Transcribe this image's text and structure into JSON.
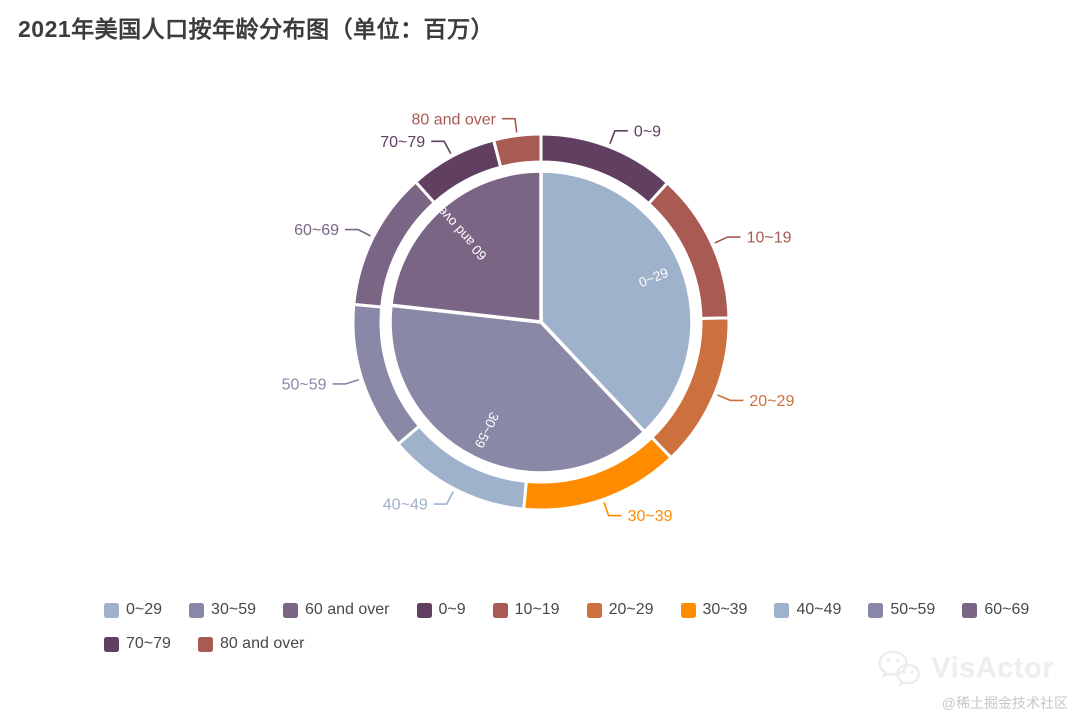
{
  "title": "2021年美国人口按年龄分布图（单位：百万）",
  "chart_data": {
    "type": "pie",
    "title": "2021年美国人口按年龄分布图（单位：百万）",
    "unit": "百万 (millions)",
    "start_angle_deg": 0,
    "direction": "clockwise",
    "grid": false,
    "legend_position": "bottom-left",
    "rings": [
      {
        "name": "inner-pie",
        "role": "age-group-totals",
        "label_style": "inside-rotated-white",
        "points": [
          {
            "label": "0~29",
            "value": 126.04,
            "color": "#9fb2cb"
          },
          {
            "label": "30~59",
            "value": 128.77,
            "color": "#8a88a7"
          },
          {
            "label": "60 and over",
            "value": 77.09,
            "color": "#7b6585"
          }
        ]
      },
      {
        "name": "outer-ring",
        "role": "age-decades",
        "label_style": "outside-leader-line-colored",
        "points": [
          {
            "label": "0~9",
            "value": 39.12,
            "color": "#613f60"
          },
          {
            "label": "10~19",
            "value": 43.01,
            "color": "#a95a52"
          },
          {
            "label": "20~29",
            "value": 43.91,
            "color": "#cc713d"
          },
          {
            "label": "30~39",
            "value": 45.4,
            "color": "#ff8b00"
          },
          {
            "label": "40~49",
            "value": 40.89,
            "color": "#9fb2cb"
          },
          {
            "label": "50~59",
            "value": 42.48,
            "color": "#8a88a7"
          },
          {
            "label": "60~69",
            "value": 39.63,
            "color": "#7b6585"
          },
          {
            "label": "70~79",
            "value": 25.17,
            "color": "#613f60"
          },
          {
            "label": "80 and over",
            "value": 13.5,
            "color": "#a95a52"
          }
        ]
      }
    ],
    "legend": [
      {
        "label": "0~29",
        "color": "#9fb2cb"
      },
      {
        "label": "30~59",
        "color": "#8a88a7"
      },
      {
        "label": "60 and over",
        "color": "#7b6585"
      },
      {
        "label": "0~9",
        "color": "#613f60"
      },
      {
        "label": "10~19",
        "color": "#a95a52"
      },
      {
        "label": "20~29",
        "color": "#cc713d"
      },
      {
        "label": "30~39",
        "color": "#ff8b00"
      },
      {
        "label": "40~49",
        "color": "#9fb2cb"
      },
      {
        "label": "50~59",
        "color": "#8a88a7"
      },
      {
        "label": "60~69",
        "color": "#7b6585"
      },
      {
        "label": "70~79",
        "color": "#613f60"
      },
      {
        "label": "80 and over",
        "color": "#a95a52"
      }
    ]
  },
  "watermark": {
    "logo_text": "VisActor",
    "credit": "@稀土掘金技术社区"
  }
}
